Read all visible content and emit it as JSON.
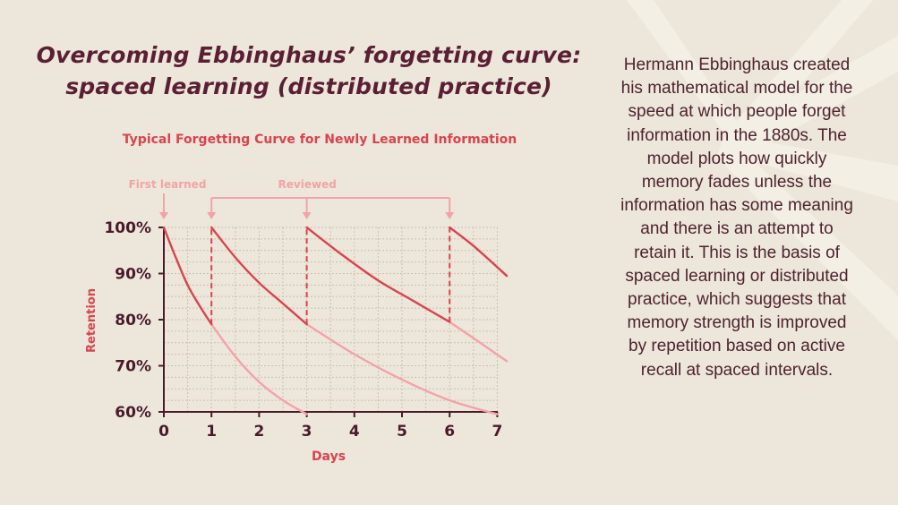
{
  "title_line1": "Overcoming Ebbinghaus’ forgetting curve:",
  "title_line2": "spaced learning (distributed practice)",
  "body_text": "Hermann Ebbinghaus created his mathematical model for the speed at which people forget information in the 1880s. The model plots how quickly memory fades unless the information has some meaning and there is an attempt to retain it. This is the basis of spaced learning or distributed practice, which suggests that memory strength is improved by repetition based on active recall at spaced intervals.",
  "colors": {
    "background": "#ece7da",
    "title": "#5a1f35",
    "accent_red": "#d9434f",
    "light_pink": "#f2a3a8",
    "axis": "#4a1a2c",
    "grid": "#c9c2ad"
  },
  "chart_data": {
    "type": "line",
    "title": "Typical Forgetting Curve for Newly Learned Information",
    "xlabel": "Days",
    "ylabel": "Retention",
    "xlim": [
      0,
      7
    ],
    "ylim": [
      60,
      100
    ],
    "x_ticks": [
      "0",
      "1",
      "2",
      "3",
      "4",
      "5",
      "6",
      "7"
    ],
    "y_ticks": [
      "60%",
      "70%",
      "80%",
      "90%",
      "100%"
    ],
    "grid": true,
    "annotations": {
      "first_learned": {
        "label": "First learned",
        "day": 0
      },
      "reviewed": {
        "label": "Reviewed",
        "days": [
          1,
          3,
          6
        ]
      }
    },
    "series": [
      {
        "role": "reviewed",
        "x": [
          0,
          0.25,
          0.5,
          0.75,
          1
        ],
        "y": [
          100,
          93.5,
          87.5,
          83,
          79
        ]
      },
      {
        "role": "reviewed",
        "x": [
          1,
          1.5,
          2,
          2.5,
          3
        ],
        "y": [
          100,
          93.5,
          88,
          83.5,
          79
        ]
      },
      {
        "role": "reviewed",
        "x": [
          3,
          3.75,
          4.5,
          5.25,
          6
        ],
        "y": [
          100,
          94,
          88.5,
          84,
          79.5
        ]
      },
      {
        "role": "reviewed",
        "x": [
          6,
          6.5,
          7.2
        ],
        "y": [
          100,
          96,
          89.5
        ]
      },
      {
        "role": "faded",
        "x": [
          1,
          1.5,
          2,
          2.5,
          3
        ],
        "y": [
          79,
          72,
          66.5,
          62.5,
          59.5
        ]
      },
      {
        "role": "faded",
        "x": [
          3,
          4,
          5,
          6,
          7
        ],
        "y": [
          79,
          72.5,
          67,
          62.5,
          59.5
        ]
      },
      {
        "role": "faded",
        "x": [
          6,
          6.5,
          7.2
        ],
        "y": [
          79.5,
          76,
          71
        ]
      }
    ],
    "review_drops": [
      {
        "x": 1,
        "from": 79,
        "to": 100
      },
      {
        "x": 3,
        "from": 79,
        "to": 100
      },
      {
        "x": 6,
        "from": 79.5,
        "to": 100
      }
    ]
  }
}
